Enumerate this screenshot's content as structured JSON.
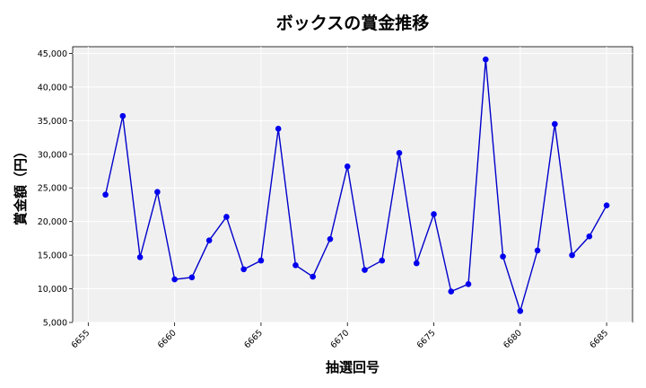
{
  "chart_data": {
    "type": "line",
    "title": "ボックスの賞金推移",
    "xlabel": "抽選回号",
    "ylabel": "賞金額（円）",
    "xlim": [
      6654.1,
      6686.5
    ],
    "ylim": [
      5000,
      46000
    ],
    "grid": true,
    "x_ticks": [
      {
        "value": 6655,
        "label": "6655"
      },
      {
        "value": 6660,
        "label": "6660"
      },
      {
        "value": 6665,
        "label": "6665"
      },
      {
        "value": 6670,
        "label": "6670"
      },
      {
        "value": 6675,
        "label": "6675"
      },
      {
        "value": 6680,
        "label": "6680"
      },
      {
        "value": 6685,
        "label": "6685"
      }
    ],
    "y_ticks": [
      {
        "value": 5000,
        "label": "5,000"
      },
      {
        "value": 10000,
        "label": "10,000"
      },
      {
        "value": 15000,
        "label": "15,000"
      },
      {
        "value": 20000,
        "label": "20,000"
      },
      {
        "value": 25000,
        "label": "25,000"
      },
      {
        "value": 30000,
        "label": "30,000"
      },
      {
        "value": 35000,
        "label": "35,000"
      },
      {
        "value": 40000,
        "label": "40,000"
      },
      {
        "value": 45000,
        "label": "45,000"
      }
    ],
    "colors": {
      "line": "#0000cc",
      "marker": "#0000ee",
      "plot_bg": "#f0f0f0",
      "grid": "#ffffff"
    },
    "series": [
      {
        "x": [
          6656,
          6657,
          6658,
          6659,
          6660,
          6661,
          6662,
          6663,
          6664,
          6665,
          6666,
          6667,
          6668,
          6669,
          6670,
          6671,
          6672,
          6673,
          6674,
          6675,
          6676,
          6677,
          6678,
          6679,
          6680,
          6681,
          6682,
          6683,
          6684,
          6685
        ],
        "values": [
          24000,
          35700,
          14700,
          24400,
          11400,
          11700,
          17200,
          20700,
          12900,
          14200,
          33800,
          13500,
          11800,
          17400,
          28200,
          12800,
          14200,
          30200,
          13800,
          21100,
          9600,
          10700,
          44100,
          14800,
          6700,
          15700,
          34500,
          15000,
          17800,
          22400
        ]
      }
    ]
  }
}
